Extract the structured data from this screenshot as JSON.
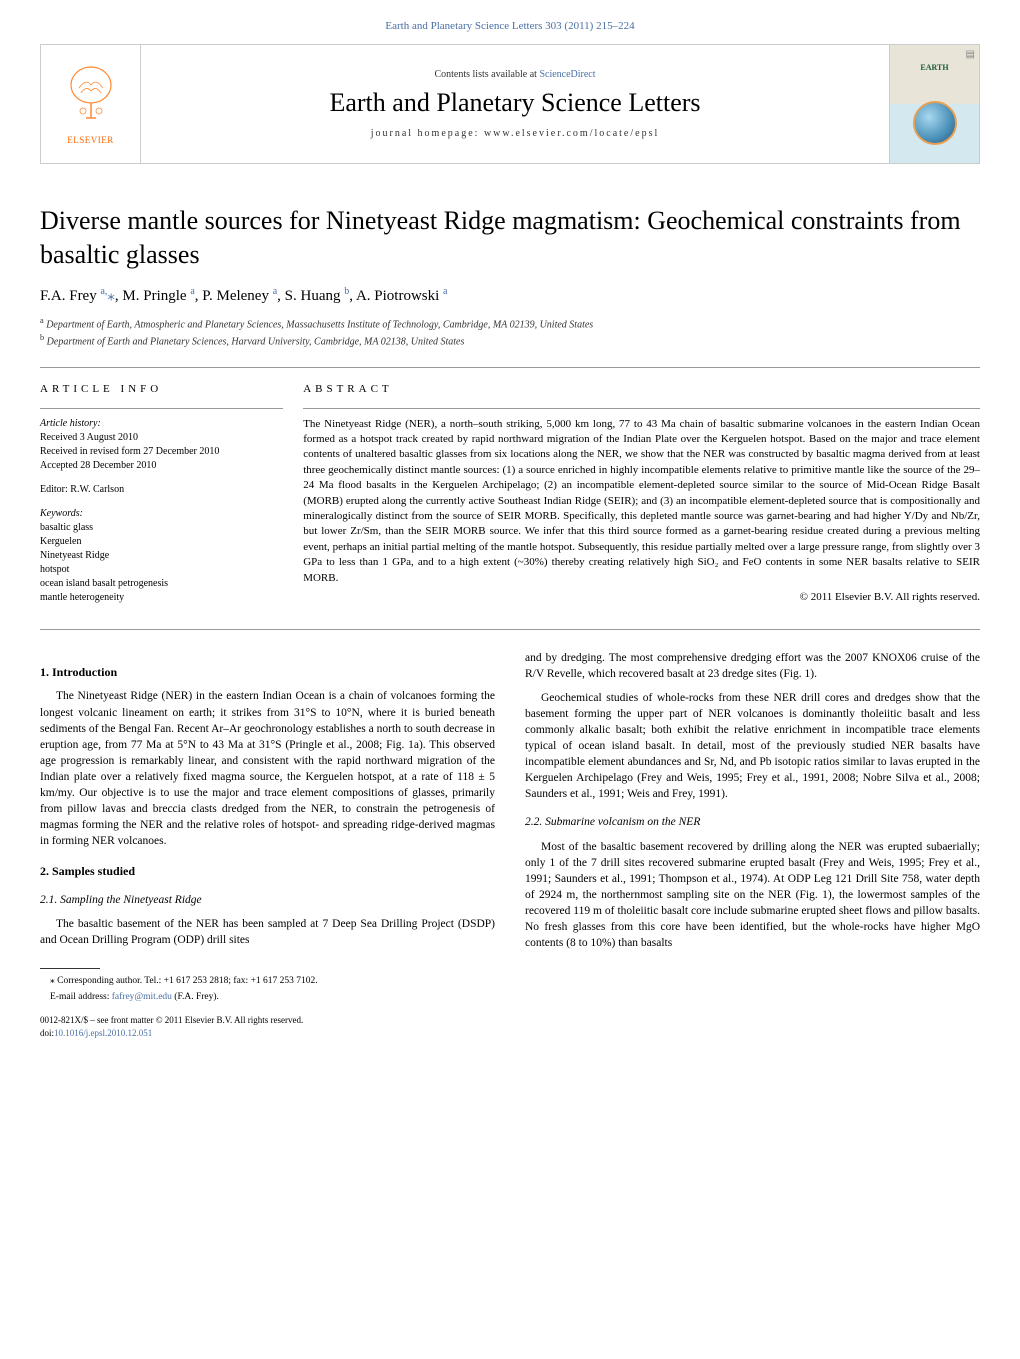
{
  "top_citation": "Earth and Planetary Science Letters 303 (2011) 215–224",
  "header": {
    "contents_prefix": "Contents lists available at ",
    "contents_link": "ScienceDirect",
    "journal_name": "Earth and Planetary Science Letters",
    "homepage_prefix": "journal homepage: ",
    "homepage_url": "www.elsevier.com/locate/epsl",
    "publisher": "ELSEVIER",
    "cover_text": "EARTH"
  },
  "article": {
    "title": "Diverse mantle sources for Ninetyeast Ridge magmatism: Geochemical constraints from basaltic glasses",
    "authors_html": "F.A. Frey <sup>a,</sup><span class='star'>⁎</span>, M. Pringle <sup>a</sup>, P. Meleney <sup>a</sup>, S. Huang <sup>b</sup>, A. Piotrowski <sup>a</sup>",
    "affiliations": [
      "Department of Earth, Atmospheric and Planetary Sciences, Massachusetts Institute of Technology, Cambridge, MA 02139, United States",
      "Department of Earth and Planetary Sciences, Harvard University, Cambridge, MA 02138, United States"
    ]
  },
  "info": {
    "label": "ARTICLE INFO",
    "history_label": "Article history:",
    "history": [
      "Received 3 August 2010",
      "Received in revised form 27 December 2010",
      "Accepted 28 December 2010"
    ],
    "editor": "Editor: R.W. Carlson",
    "keywords_label": "Keywords:",
    "keywords": [
      "basaltic glass",
      "Kerguelen",
      "Ninetyeast Ridge",
      "hotspot",
      "ocean island basalt petrogenesis",
      "mantle heterogeneity"
    ]
  },
  "abstract": {
    "label": "ABSTRACT",
    "text": "The Ninetyeast Ridge (NER), a north–south striking, 5,000 km long, 77 to 43 Ma chain of basaltic submarine volcanoes in the eastern Indian Ocean formed as a hotspot track created by rapid northward migration of the Indian Plate over the Kerguelen hotspot. Based on the major and trace element contents of unaltered basaltic glasses from six locations along the NER, we show that the NER was constructed by basaltic magma derived from at least three geochemically distinct mantle sources: (1) a source enriched in highly incompatible elements relative to primitive mantle like the source of the 29–24 Ma flood basalts in the Kerguelen Archipelago; (2) an incompatible element-depleted source similar to the source of Mid-Ocean Ridge Basalt (MORB) erupted along the currently active Southeast Indian Ridge (SEIR); and (3) an incompatible element-depleted source that is compositionally and mineralogically distinct from the source of SEIR MORB. Specifically, this depleted mantle source was garnet-bearing and had higher Y/Dy and Nb/Zr, but lower Zr/Sm, than the SEIR MORB source. We infer that this third source formed as a garnet-bearing residue created during a previous melting event, perhaps an initial partial melting of the mantle hotspot. Subsequently, this residue partially melted over a large pressure range, from slightly over 3 GPa to less than 1 GPa, and to a high extent (~30%) thereby creating relatively high SiO₂ and FeO contents in some NER basalts relative to SEIR MORB.",
    "copyright": "© 2011 Elsevier B.V. All rights reserved."
  },
  "body": {
    "left": {
      "h_intro": "1. Introduction",
      "p_intro": "The Ninetyeast Ridge (NER) in the eastern Indian Ocean is a chain of volcanoes forming the longest volcanic lineament on earth; it strikes from 31°S to 10°N, where it is buried beneath sediments of the Bengal Fan. Recent Ar–Ar geochronology establishes a north to south decrease in eruption age, from 77 Ma at 5°N to 43 Ma at 31°S (Pringle et al., 2008; Fig. 1a). This observed age progression is remarkably linear, and consistent with the rapid northward migration of the Indian plate over a relatively fixed magma source, the Kerguelen hotspot, at a rate of 118 ± 5 km/my. Our objective is to use the major and trace element compositions of glasses, primarily from pillow lavas and breccia clasts dredged from the NER, to constrain the petrogenesis of magmas forming the NER and the relative roles of hotspot- and spreading ridge-derived magmas in forming NER volcanoes.",
      "h_samples": "2. Samples studied",
      "h_sampling": "2.1. Sampling the Ninetyeast Ridge",
      "p_sampling": "The basaltic basement of the NER has been sampled at 7 Deep Sea Drilling Project (DSDP) and Ocean Drilling Program (ODP) drill sites"
    },
    "right": {
      "p1": "and by dredging. The most comprehensive dredging effort was the 2007 KNOX06 cruise of the R/V Revelle, which recovered basalt at 23 dredge sites (Fig. 1).",
      "p2": "Geochemical studies of whole-rocks from these NER drill cores and dredges show that the basement forming the upper part of NER volcanoes is dominantly tholeiitic basalt and less commonly alkalic basalt; both exhibit the relative enrichment in incompatible trace elements typical of ocean island basalt. In detail, most of the previously studied NER basalts have incompatible element abundances and Sr, Nd, and Pb isotopic ratios similar to lavas erupted in the Kerguelen Archipelago (Frey and Weis, 1995; Frey et al., 1991, 2008; Nobre Silva et al., 2008; Saunders et al., 1991; Weis and Frey, 1991).",
      "h_sub": "2.2. Submarine volcanism on the NER",
      "p3": "Most of the basaltic basement recovered by drilling along the NER was erupted subaerially; only 1 of the 7 drill sites recovered submarine erupted basalt (Frey and Weis, 1995; Frey et al., 1991; Saunders et al., 1991; Thompson et al., 1974). At ODP Leg 121 Drill Site 758, water depth of 2924 m, the northernmost sampling site on the NER (Fig. 1), the lowermost samples of the recovered 119 m of tholeiitic basalt core include submarine erupted sheet flows and pillow basalts. No fresh glasses from this core have been identified, but the whole-rocks have higher MgO contents (8 to 10%) than basalts"
    }
  },
  "footnotes": {
    "corresponding": "⁎ Corresponding author. Tel.: +1 617 253 2818; fax: +1 617 253 7102.",
    "email_prefix": "E-mail address: ",
    "email": "fafrey@mit.edu",
    "email_suffix": " (F.A. Frey).",
    "front_matter": "0012-821X/$ – see front matter © 2011 Elsevier B.V. All rights reserved.",
    "doi_prefix": "doi:",
    "doi": "10.1016/j.epsl.2010.12.051"
  },
  "colors": {
    "link": "#4a6fa5",
    "orange": "#ff6600",
    "rule": "#999999"
  }
}
